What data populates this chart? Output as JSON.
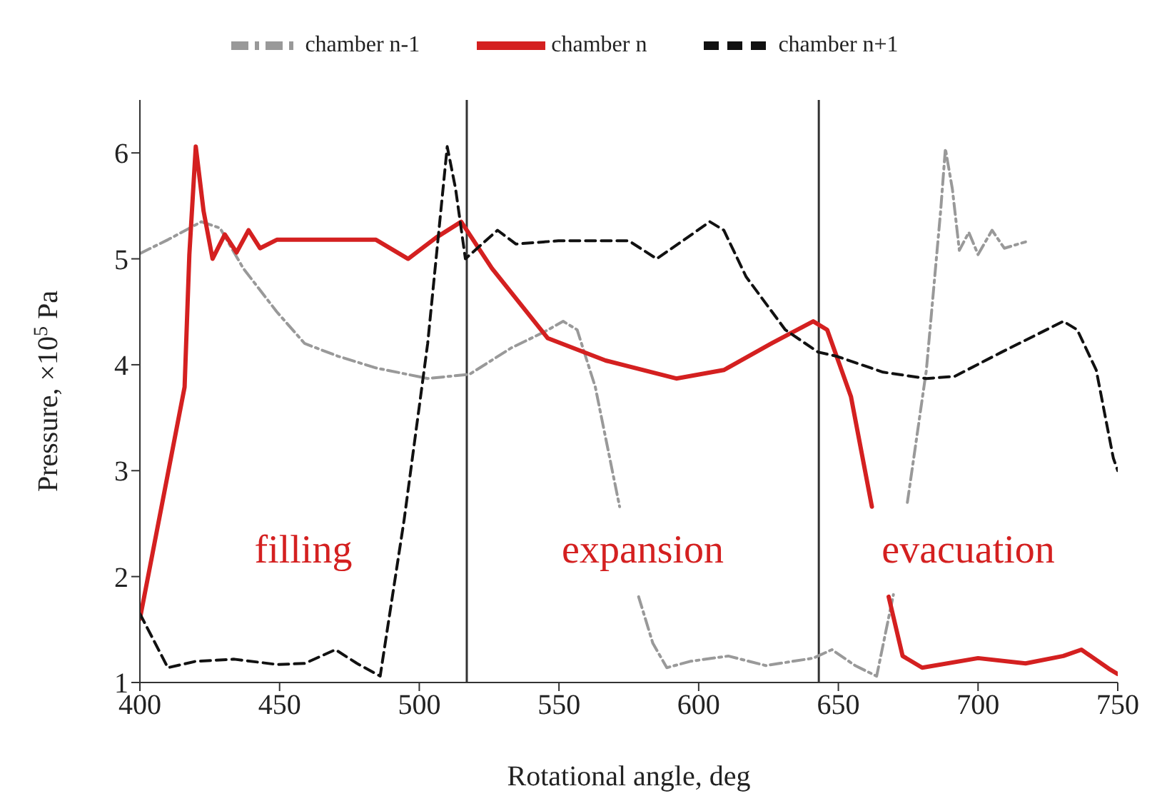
{
  "chart_data": {
    "type": "line",
    "xlabel": "Rotational angle, deg",
    "ylabel": "Pressure, ×10$^{5}$ Pa",
    "xlim": [
      400,
      750
    ],
    "xticks": [
      400,
      450,
      500,
      550,
      600,
      650,
      700,
      750
    ],
    "ylim": [
      1,
      6.5
    ],
    "yticks": [
      1,
      2,
      3,
      4,
      5,
      6
    ],
    "grid": false,
    "legend": "top",
    "marker": "none",
    "series": [
      {
        "name": "chamber n-1",
        "color": "#999999",
        "line_style": "dashdot",
        "x": [
          400,
          410,
          422,
          428.7,
          437,
          449,
          459,
          471,
          484.5,
          503,
          518,
          533,
          544.7,
          551.5,
          556.5,
          563,
          571.7,
          575,
          578.5,
          583.6,
          588.6,
          597,
          610.6,
          624,
          641,
          647.7,
          656,
          663.7,
          669.7,
          672,
          674.7,
          681.5,
          686.6,
          688.3,
          690.8,
          693.3,
          696.7,
          700,
          705,
          709.4,
          717
        ],
        "values": [
          5.05,
          5.18,
          5.35,
          5.29,
          4.91,
          4.5,
          4.2,
          4.08,
          3.97,
          3.87,
          3.91,
          4.16,
          4.31,
          4.41,
          4.33,
          3.79,
          2.66,
          null,
          1.81,
          1.37,
          1.14,
          1.2,
          1.25,
          1.16,
          1.23,
          1.31,
          1.16,
          1.06,
          1.83,
          null,
          2.7,
          3.95,
          5.45,
          6.04,
          5.66,
          5.08,
          5.25,
          5.04,
          5.27,
          5.1,
          5.16
        ]
      },
      {
        "name": "chamber n",
        "color": "#d42020",
        "line_style": "solid",
        "x": [
          400,
          416,
          417.7,
          420,
          422.8,
          426,
          430.4,
          434.6,
          438.9,
          443,
          449,
          467.6,
          484.5,
          496,
          506,
          515,
          526,
          546,
          566.7,
          592,
          609,
          626,
          641,
          646,
          654.5,
          662,
          665,
          668,
          673,
          680,
          700,
          717,
          730.5,
          737,
          747.4,
          750
        ],
        "values": [
          1.6,
          3.79,
          5.04,
          6.06,
          5.45,
          5.0,
          5.23,
          5.06,
          5.27,
          5.1,
          5.18,
          5.18,
          5.18,
          5.0,
          5.2,
          5.35,
          4.91,
          4.25,
          4.04,
          3.87,
          3.95,
          4.2,
          4.41,
          4.33,
          3.7,
          2.66,
          null,
          1.81,
          1.25,
          1.14,
          1.23,
          1.18,
          1.25,
          1.31,
          1.12,
          1.08
        ]
      },
      {
        "name": "chamber n+1",
        "color": "#111111",
        "line_style": "dashed",
        "x": [
          400,
          410,
          420,
          433.8,
          449,
          459,
          470,
          477.7,
          486,
          494.6,
          503,
          510,
          513,
          516.5,
          528,
          534.6,
          549.8,
          575,
          585,
          593.7,
          604,
          609,
          617,
          631,
          642.7,
          649.4,
          666,
          681.5,
          691.6,
          708.5,
          730.5,
          735.5,
          742.3,
          748.4,
          750
        ],
        "values": [
          1.65,
          1.14,
          1.2,
          1.22,
          1.17,
          1.18,
          1.31,
          1.18,
          1.06,
          2.54,
          4.2,
          6.06,
          5.66,
          5.0,
          5.27,
          5.14,
          5.17,
          5.17,
          5.0,
          5.16,
          5.35,
          5.27,
          4.83,
          4.33,
          4.12,
          4.08,
          3.93,
          3.87,
          3.89,
          4.12,
          4.41,
          4.33,
          3.95,
          3.12,
          3.0
        ]
      }
    ],
    "ref_lines": [
      {
        "axis": "x",
        "value": 517,
        "color": "#333333"
      },
      {
        "axis": "x",
        "value": 643,
        "color": "#333333"
      }
    ],
    "annotations": [
      "filling",
      "expansion",
      "evacuation"
    ]
  }
}
